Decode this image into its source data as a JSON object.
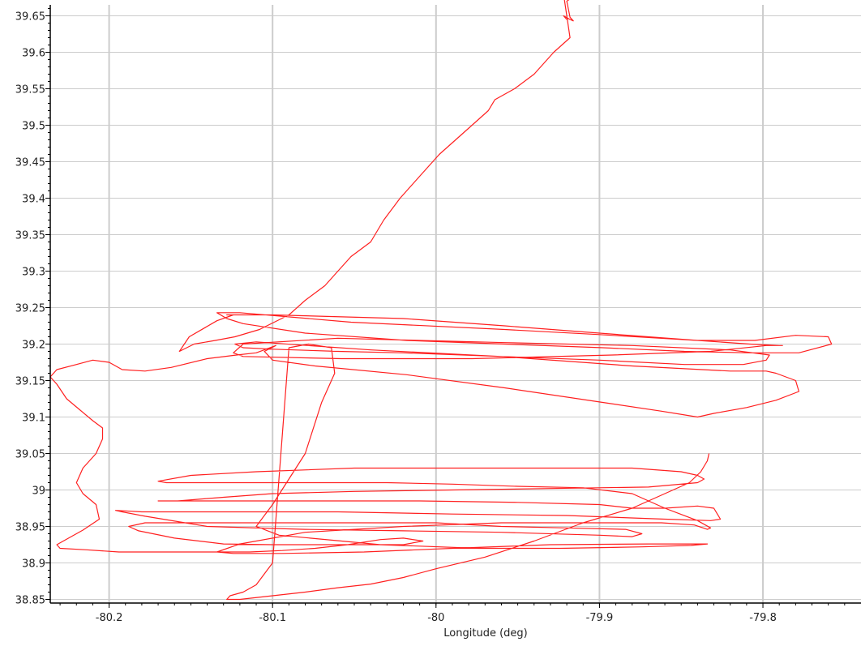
{
  "chart_data": {
    "type": "line",
    "xlabel": "Longitude (deg)",
    "ylabel": "",
    "xlim": [
      -80.236,
      -79.74
    ],
    "ylim": [
      38.845,
      39.665
    ],
    "x_ticks": [
      -80.2,
      -80.1,
      -80,
      -79.9,
      -79.8
    ],
    "x_tick_labels": [
      "-80.2",
      "-80.1",
      "-80",
      "-79.9",
      "-79.8"
    ],
    "y_ticks": [
      38.85,
      38.9,
      38.95,
      39,
      39.05,
      39.1,
      39.15,
      39.2,
      39.25,
      39.3,
      39.35,
      39.4,
      39.45,
      39.5,
      39.55,
      39.6,
      39.65
    ],
    "y_tick_labels": [
      "38.85",
      "38.9",
      "38.95",
      "39",
      "39.05",
      "39.1",
      "39.15",
      "39.2",
      "39.25",
      "39.3",
      "39.35",
      "39.4",
      "39.45",
      "39.5",
      "39.55",
      "39.6",
      "39.65"
    ],
    "grid": true,
    "colors": {
      "track": "#ff2020",
      "grid": "#cccccc",
      "axis": "#000000"
    },
    "series": [
      {
        "x": [
          -79.92,
          -79.922,
          -79.918,
          -79.916,
          -79.918,
          -79.92,
          -79.915,
          -79.922,
          -79.918,
          -79.928,
          -79.94,
          -79.952,
          -79.964,
          -79.968,
          -79.978,
          -79.988,
          -79.998,
          -80.01,
          -80.022,
          -80.032,
          -80.04,
          -80.052,
          -80.06,
          -80.068,
          -80.08,
          -80.09,
          -80.108,
          -80.123,
          -80.135,
          -80.148,
          -80.157,
          -80.151,
          -80.134,
          -80.124,
          -80.128,
          -80.1,
          -80.02,
          -79.958,
          -79.9,
          -79.84,
          -79.82,
          -79.805,
          -79.78,
          -79.76,
          -79.758,
          -79.778,
          -79.808,
          -79.848,
          -79.898,
          -79.958,
          -80.018,
          -80.08,
          -80.118,
          -80.128,
          -80.134,
          -80.12,
          -80.052,
          -79.958,
          -79.9,
          -79.84,
          -79.808,
          -79.79,
          -79.788,
          -79.798,
          -79.832,
          -79.892,
          -79.978,
          -80.058,
          -80.118,
          -80.124,
          -80.118,
          -80.06,
          -79.958,
          -79.88,
          -79.82,
          -79.796,
          -79.798,
          -79.812,
          -79.848,
          -79.9,
          -79.96,
          -80.02,
          -80.06,
          -80.1,
          -80.118,
          -80.123,
          -80.11,
          -80.04,
          -79.96,
          -79.88,
          -79.82,
          -79.798,
          -79.792,
          -79.78,
          -79.778,
          -79.792,
          -79.81,
          -79.83,
          -79.84,
          -79.862,
          -79.898,
          -79.958,
          -80.018,
          -80.074,
          -80.1,
          -80.105,
          -80.098,
          -80.11,
          -80.122,
          -80.14,
          -80.162,
          -80.178,
          -80.192,
          -80.2,
          -80.21,
          -80.22,
          -80.232,
          -80.236,
          -80.232,
          -80.226,
          -80.218,
          -80.21,
          -80.204,
          -80.204,
          -80.208,
          -80.216,
          -80.22,
          -80.216,
          -80.208,
          -80.206,
          -80.216,
          -80.228,
          -80.232,
          -80.23,
          -80.214,
          -80.194,
          -80.174,
          -80.154,
          -80.134,
          -80.114,
          -80.094,
          -80.074,
          -80.054,
          -80.034,
          -80.02,
          -80.008,
          -80.02,
          -80.04,
          -80.07,
          -80.1,
          -80.13,
          -80.16,
          -80.182,
          -80.188,
          -80.178,
          -80.15,
          -80.12,
          -80.08,
          -80.04,
          -80.0,
          -79.96,
          -79.92,
          -79.884,
          -79.874,
          -79.88,
          -79.9,
          -79.96,
          -80.02,
          -80.08,
          -80.14,
          -80.178,
          -80.192,
          -80.196,
          -80.18,
          -80.15,
          -80.11,
          -80.06,
          -79.99,
          -79.92,
          -79.86,
          -79.832,
          -79.826,
          -79.83,
          -79.84,
          -79.86,
          -79.88,
          -79.9,
          -79.95,
          -80.01,
          -80.07,
          -80.13,
          -80.168,
          -80.17,
          -80.158,
          -80.13,
          -80.1,
          -80.05,
          -79.99,
          -79.93,
          -79.87,
          -79.84,
          -79.836,
          -79.84,
          -79.85,
          -79.88,
          -79.92,
          -79.98,
          -80.05,
          -80.11,
          -80.15,
          -80.17,
          -80.165,
          -80.145,
          -80.11,
          -80.07,
          -80.03,
          -79.99,
          -79.95,
          -79.91,
          -79.88,
          -79.86,
          -79.84,
          -79.832,
          -79.834,
          -79.842,
          -79.862,
          -79.9,
          -79.96,
          -80.02,
          -80.08,
          -80.12,
          -80.134,
          -80.124,
          -80.094,
          -80.044,
          -79.99,
          -79.93,
          -79.87,
          -79.838,
          -79.834,
          -79.844,
          -79.874,
          -79.924,
          -79.974,
          -80.034,
          -80.096,
          -80.11,
          -80.1,
          -80.08,
          -80.07,
          -80.062,
          -80.064,
          -80.078,
          -80.09,
          -80.1,
          -80.11,
          -80.118,
          -80.126,
          -80.128,
          -80.12,
          -80.1,
          -80.08,
          -80.06,
          -80.04,
          -80.02,
          -80.0,
          -79.97,
          -79.94,
          -79.91,
          -79.88,
          -79.86,
          -79.845,
          -79.838,
          -79.834,
          -79.833
        ],
        "y": [
          39.645,
          39.65,
          39.645,
          39.643,
          39.648,
          39.67,
          39.678,
          39.68,
          39.62,
          39.6,
          39.57,
          39.55,
          39.535,
          39.52,
          39.5,
          39.48,
          39.46,
          39.43,
          39.4,
          39.37,
          39.34,
          39.32,
          39.3,
          39.28,
          39.26,
          39.24,
          39.22,
          39.21,
          39.205,
          39.2,
          39.19,
          39.21,
          39.232,
          39.24,
          39.24,
          39.24,
          39.235,
          39.225,
          39.215,
          39.205,
          39.205,
          39.205,
          39.212,
          39.21,
          39.2,
          39.188,
          39.188,
          39.19,
          39.195,
          39.2,
          39.205,
          39.215,
          39.228,
          39.235,
          39.243,
          39.243,
          39.23,
          39.22,
          39.213,
          39.205,
          39.2,
          39.198,
          39.198,
          39.198,
          39.19,
          39.185,
          39.18,
          39.18,
          39.183,
          39.188,
          39.2,
          39.208,
          39.202,
          39.198,
          39.192,
          39.185,
          39.178,
          39.172,
          39.172,
          39.178,
          39.183,
          39.188,
          39.19,
          39.193,
          39.195,
          39.2,
          39.203,
          39.192,
          39.183,
          39.17,
          39.163,
          39.163,
          39.16,
          39.15,
          39.135,
          39.123,
          39.113,
          39.105,
          39.1,
          39.108,
          39.12,
          39.14,
          39.158,
          39.17,
          39.178,
          39.19,
          39.198,
          39.188,
          39.185,
          39.18,
          39.168,
          39.163,
          39.165,
          39.175,
          39.178,
          39.172,
          39.165,
          39.155,
          39.145,
          39.125,
          39.11,
          39.095,
          39.085,
          39.07,
          39.05,
          39.03,
          39.01,
          38.995,
          38.98,
          38.96,
          38.945,
          38.93,
          38.925,
          38.92,
          38.918,
          38.915,
          38.915,
          38.915,
          38.915,
          38.915,
          38.917,
          38.92,
          38.925,
          38.932,
          38.934,
          38.93,
          38.925,
          38.925,
          38.925,
          38.925,
          38.926,
          38.934,
          38.944,
          38.95,
          38.955,
          38.955,
          38.955,
          38.955,
          38.955,
          38.955,
          38.95,
          38.948,
          38.946,
          38.94,
          38.936,
          38.938,
          38.942,
          38.944,
          38.946,
          38.95,
          38.964,
          38.97,
          38.972,
          38.97,
          38.97,
          38.97,
          38.97,
          38.967,
          38.965,
          38.96,
          38.958,
          38.96,
          38.975,
          38.978,
          38.975,
          38.975,
          38.98,
          38.983,
          38.985,
          38.985,
          38.985,
          38.985,
          38.985,
          38.985,
          38.99,
          38.995,
          38.998,
          39.0,
          39.002,
          39.004,
          39.01,
          39.015,
          39.02,
          39.025,
          39.03,
          39.03,
          39.03,
          39.03,
          39.025,
          39.02,
          39.012,
          39.01,
          39.01,
          39.01,
          39.01,
          39.01,
          39.008,
          39.005,
          39.003,
          38.995,
          38.975,
          38.958,
          38.948,
          38.946,
          38.952,
          38.955,
          38.955,
          38.955,
          38.95,
          38.942,
          38.926,
          38.915,
          38.913,
          38.913,
          38.915,
          38.92,
          38.925,
          38.926,
          38.926,
          38.926,
          38.924,
          38.922,
          38.92,
          38.92,
          38.925,
          38.938,
          38.95,
          38.98,
          39.05,
          39.12,
          39.16,
          39.195,
          39.2,
          39.195,
          38.9,
          38.87,
          38.86,
          38.855,
          38.85,
          38.85,
          38.855,
          38.86,
          38.866,
          38.871,
          38.88,
          38.892,
          38.908,
          38.93,
          38.955,
          38.975,
          38.995,
          39.01,
          39.025,
          39.04,
          39.05
        ]
      }
    ]
  }
}
